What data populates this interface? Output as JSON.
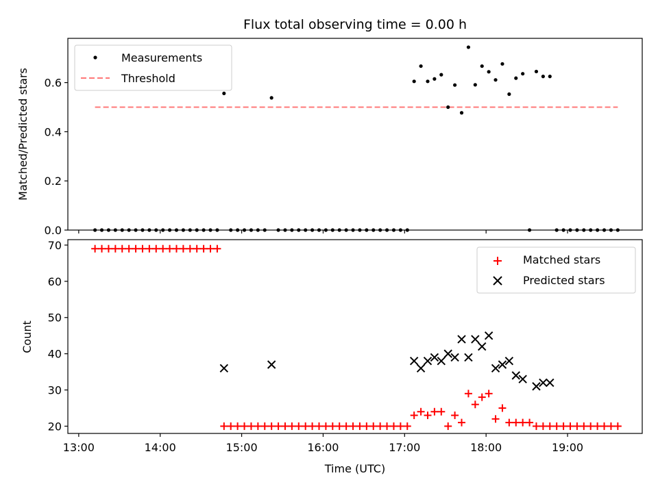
{
  "chart_data": [
    {
      "type": "scatter",
      "title": "Flux total observing time = 0.00 h",
      "xlabel": "",
      "ylabel": "Matched/Predicted stars",
      "xlim": [
        "12:52",
        "19:55"
      ],
      "ylim": [
        0,
        0.78
      ],
      "yticks": [
        0.0,
        0.2,
        0.4,
        0.6
      ],
      "ytick_labels": [
        "0.0",
        "0.2",
        "0.4",
        "0.6"
      ],
      "legend": {
        "placement": "upper-left",
        "entries": [
          "Measurements",
          "Threshold"
        ]
      },
      "series": [
        {
          "name": "Measurements",
          "marker": "dot",
          "color": "#000000",
          "points": [
            [
              "13:12",
              0
            ],
            [
              "13:17",
              0
            ],
            [
              "13:22",
              0
            ],
            [
              "13:27",
              0
            ],
            [
              "13:32",
              0
            ],
            [
              "13:37",
              0
            ],
            [
              "13:42",
              0
            ],
            [
              "13:47",
              0
            ],
            [
              "13:52",
              0
            ],
            [
              "13:57",
              0
            ],
            [
              "14:02",
              0
            ],
            [
              "14:07",
              0
            ],
            [
              "14:12",
              0
            ],
            [
              "14:17",
              0
            ],
            [
              "14:22",
              0
            ],
            [
              "14:27",
              0
            ],
            [
              "14:32",
              0
            ],
            [
              "14:37",
              0
            ],
            [
              "14:42",
              0
            ],
            [
              "14:47",
              0.556
            ],
            [
              "14:52",
              0
            ],
            [
              "14:57",
              0
            ],
            [
              "15:02",
              0
            ],
            [
              "15:07",
              0
            ],
            [
              "15:12",
              0
            ],
            [
              "15:17",
              0
            ],
            [
              "15:22",
              0.538
            ],
            [
              "15:27",
              0
            ],
            [
              "15:32",
              0
            ],
            [
              "15:37",
              0
            ],
            [
              "15:42",
              0
            ],
            [
              "15:47",
              0
            ],
            [
              "15:52",
              0
            ],
            [
              "15:57",
              0
            ],
            [
              "16:02",
              0
            ],
            [
              "16:07",
              0
            ],
            [
              "16:12",
              0
            ],
            [
              "16:17",
              0
            ],
            [
              "16:22",
              0
            ],
            [
              "16:27",
              0
            ],
            [
              "16:32",
              0
            ],
            [
              "16:37",
              0
            ],
            [
              "16:42",
              0
            ],
            [
              "16:47",
              0
            ],
            [
              "16:52",
              0
            ],
            [
              "16:57",
              0
            ],
            [
              "17:02",
              0
            ],
            [
              "17:07",
              0.605
            ],
            [
              "17:12",
              0.667
            ],
            [
              "17:17",
              0.605
            ],
            [
              "17:22",
              0.615
            ],
            [
              "17:27",
              0.632
            ],
            [
              "17:32",
              0.5
            ],
            [
              "17:37",
              0.59
            ],
            [
              "17:42",
              0.477
            ],
            [
              "17:47",
              0.744
            ],
            [
              "17:52",
              0.591
            ],
            [
              "17:57",
              0.667
            ],
            [
              "18:02",
              0.644
            ],
            [
              "18:07",
              0.611
            ],
            [
              "18:12",
              0.676
            ],
            [
              "18:17",
              0.553
            ],
            [
              "18:22",
              0.618
            ],
            [
              "18:27",
              0.636
            ],
            [
              "18:32",
              0
            ],
            [
              "18:37",
              0.645
            ],
            [
              "18:42",
              0.625
            ],
            [
              "18:47",
              0.625
            ],
            [
              "18:52",
              0
            ],
            [
              "18:57",
              0
            ],
            [
              "19:02",
              0
            ],
            [
              "19:07",
              0
            ],
            [
              "19:12",
              0
            ],
            [
              "19:17",
              0
            ],
            [
              "19:22",
              0
            ],
            [
              "19:27",
              0
            ],
            [
              "19:32",
              0
            ],
            [
              "19:37",
              0
            ]
          ]
        },
        {
          "name": "Threshold",
          "type": "line",
          "style": "dashed",
          "color": "#ff7777",
          "points": [
            [
              "13:12",
              0.5
            ],
            [
              "19:37",
              0.5
            ]
          ]
        }
      ]
    },
    {
      "type": "scatter",
      "title": "",
      "xlabel": "Time (UTC)",
      "ylabel": "Count",
      "xlim": [
        "12:52",
        "19:55"
      ],
      "ylim": [
        18,
        71.5
      ],
      "xticks": [
        "13:00",
        "14:00",
        "15:00",
        "16:00",
        "17:00",
        "18:00",
        "19:00"
      ],
      "xtick_labels": [
        "13:00",
        "14:00",
        "15:00",
        "16:00",
        "17:00",
        "18:00",
        "19:00"
      ],
      "yticks": [
        20,
        30,
        40,
        50,
        60,
        70
      ],
      "ytick_labels": [
        "20",
        "30",
        "40",
        "50",
        "60",
        "70"
      ],
      "legend": {
        "placement": "upper-right",
        "entries": [
          "Matched stars",
          "Predicted stars"
        ]
      },
      "series": [
        {
          "name": "Matched stars",
          "marker": "plus",
          "color": "#ff0000",
          "points": [
            [
              "13:12",
              69
            ],
            [
              "13:17",
              69
            ],
            [
              "13:22",
              69
            ],
            [
              "13:27",
              69
            ],
            [
              "13:32",
              69
            ],
            [
              "13:37",
              69
            ],
            [
              "13:42",
              69
            ],
            [
              "13:47",
              69
            ],
            [
              "13:52",
              69
            ],
            [
              "13:57",
              69
            ],
            [
              "14:02",
              69
            ],
            [
              "14:07",
              69
            ],
            [
              "14:12",
              69
            ],
            [
              "14:17",
              69
            ],
            [
              "14:22",
              69
            ],
            [
              "14:27",
              69
            ],
            [
              "14:32",
              69
            ],
            [
              "14:37",
              69
            ],
            [
              "14:42",
              69
            ],
            [
              "14:47",
              20
            ],
            [
              "14:52",
              20
            ],
            [
              "14:57",
              20
            ],
            [
              "15:02",
              20
            ],
            [
              "15:07",
              20
            ],
            [
              "15:12",
              20
            ],
            [
              "15:17",
              20
            ],
            [
              "15:22",
              20
            ],
            [
              "15:27",
              20
            ],
            [
              "15:32",
              20
            ],
            [
              "15:37",
              20
            ],
            [
              "15:42",
              20
            ],
            [
              "15:47",
              20
            ],
            [
              "15:52",
              20
            ],
            [
              "15:57",
              20
            ],
            [
              "16:02",
              20
            ],
            [
              "16:07",
              20
            ],
            [
              "16:12",
              20
            ],
            [
              "16:17",
              20
            ],
            [
              "16:22",
              20
            ],
            [
              "16:27",
              20
            ],
            [
              "16:32",
              20
            ],
            [
              "16:37",
              20
            ],
            [
              "16:42",
              20
            ],
            [
              "16:47",
              20
            ],
            [
              "16:52",
              20
            ],
            [
              "16:57",
              20
            ],
            [
              "17:02",
              20
            ],
            [
              "17:07",
              23
            ],
            [
              "17:12",
              24
            ],
            [
              "17:17",
              23
            ],
            [
              "17:22",
              24
            ],
            [
              "17:27",
              24
            ],
            [
              "17:32",
              20
            ],
            [
              "17:37",
              23
            ],
            [
              "17:42",
              21
            ],
            [
              "17:47",
              29
            ],
            [
              "17:52",
              26
            ],
            [
              "17:57",
              28
            ],
            [
              "18:02",
              29
            ],
            [
              "18:07",
              22
            ],
            [
              "18:12",
              25
            ],
            [
              "18:17",
              21
            ],
            [
              "18:22",
              21
            ],
            [
              "18:27",
              21
            ],
            [
              "18:32",
              21
            ],
            [
              "18:37",
              20
            ],
            [
              "18:42",
              20
            ],
            [
              "18:47",
              20
            ],
            [
              "18:52",
              20
            ],
            [
              "18:57",
              20
            ],
            [
              "19:02",
              20
            ],
            [
              "19:07",
              20
            ],
            [
              "19:12",
              20
            ],
            [
              "19:17",
              20
            ],
            [
              "19:22",
              20
            ],
            [
              "19:27",
              20
            ],
            [
              "19:32",
              20
            ],
            [
              "19:37",
              20
            ]
          ]
        },
        {
          "name": "Predicted stars",
          "marker": "x",
          "color": "#000000",
          "points": [
            [
              "14:47",
              36
            ],
            [
              "15:22",
              37
            ],
            [
              "17:07",
              38
            ],
            [
              "17:12",
              36
            ],
            [
              "17:17",
              38
            ],
            [
              "17:22",
              39
            ],
            [
              "17:27",
              38
            ],
            [
              "17:32",
              40
            ],
            [
              "17:37",
              39
            ],
            [
              "17:42",
              44
            ],
            [
              "17:47",
              39
            ],
            [
              "17:52",
              44
            ],
            [
              "17:57",
              42
            ],
            [
              "18:02",
              45
            ],
            [
              "18:07",
              36
            ],
            [
              "18:12",
              37
            ],
            [
              "18:17",
              38
            ],
            [
              "18:22",
              34
            ],
            [
              "18:27",
              33
            ],
            [
              "18:37",
              31
            ],
            [
              "18:42",
              32
            ],
            [
              "18:47",
              32
            ]
          ]
        }
      ]
    }
  ]
}
